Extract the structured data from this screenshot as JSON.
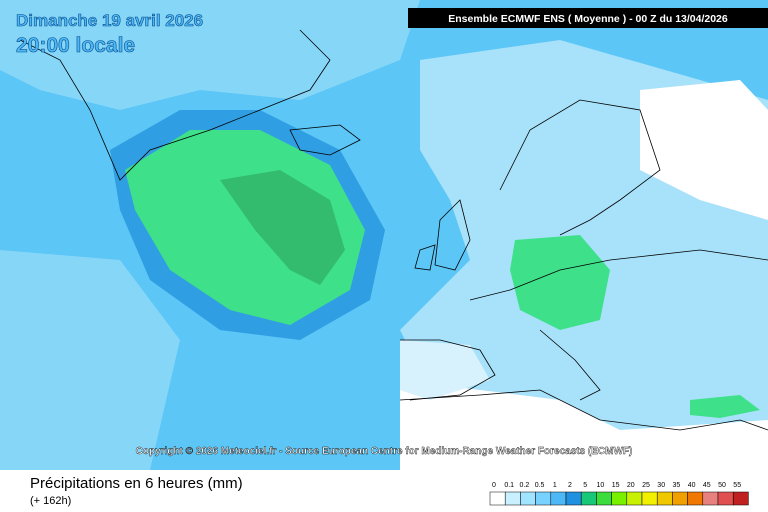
{
  "header": {
    "date": "Dimanche 19 avril 2026",
    "time": "20:00 locale",
    "model": "Ensemble ECMWF ENS  ( Moyenne )  -  00 Z du 13/04/2026"
  },
  "copyright": "Copyright © 2026 Meteociel.fr - Source European Centre for Medium-Range Weather Forecasts (ECMWF)",
  "footer": {
    "title": "Précipitations en 6 heures (mm)",
    "lead": "(+ 162h)"
  },
  "legend": {
    "labels": [
      "0",
      "0.1",
      "0.2",
      "0.5",
      "1",
      "2",
      "5",
      "10",
      "15",
      "20",
      "25",
      "30",
      "35",
      "40",
      "45",
      "50",
      "55"
    ],
    "colors": [
      "#ffffff",
      "#c8f0ff",
      "#a0e4ff",
      "#78d2ff",
      "#4cb8f5",
      "#2090e0",
      "#18c878",
      "#3cdc3c",
      "#78f000",
      "#c8f000",
      "#f0f000",
      "#f0c800",
      "#f0a000",
      "#f07800",
      "#e88080",
      "#e05050",
      "#c02020"
    ]
  }
}
